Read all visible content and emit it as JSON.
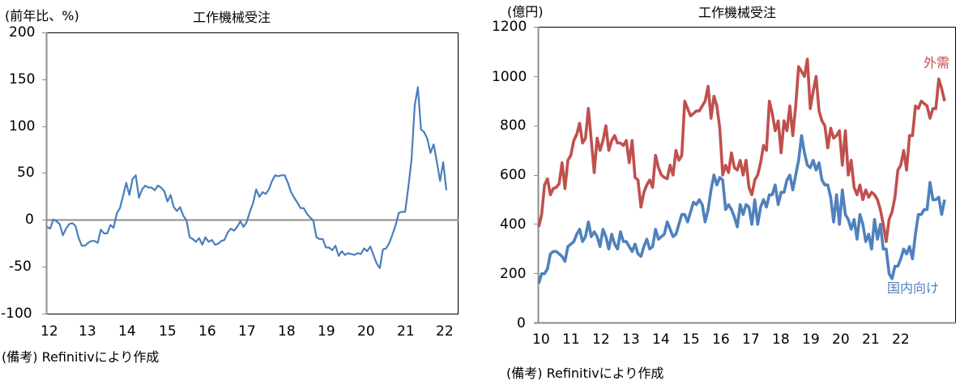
{
  "chart_data": [
    {
      "type": "line",
      "title": "工作機械受注",
      "ylabel": "(前年比、%)",
      "xlabel": "",
      "note": "(備考) Refinitivにより作成",
      "ylim": [
        -100,
        200
      ],
      "yticks": [
        "200",
        "150",
        "100",
        "50",
        "0",
        "-50",
        "-100"
      ],
      "xticks": [
        "12",
        "13",
        "14",
        "15",
        "16",
        "17",
        "18",
        "19",
        "20",
        "21",
        "22"
      ],
      "grid": false,
      "zero_line": true,
      "legend": "none",
      "series": [
        {
          "name": "工作機械受注(前年比)",
          "color": "#4a7ebb",
          "x_start": 2012.0,
          "x_step": 0.0833,
          "values": [
            -7,
            -9,
            1,
            -1,
            -4,
            -16,
            -9,
            -4,
            -3,
            -6,
            -19,
            -27,
            -27,
            -24,
            -22,
            -22,
            -24,
            -10,
            -14,
            -14,
            -5,
            -8,
            7,
            13,
            26,
            40,
            27,
            44,
            48,
            24,
            33,
            37,
            35,
            35,
            32,
            37,
            35,
            31,
            20,
            27,
            14,
            10,
            14,
            5,
            0,
            -18,
            -20,
            -23,
            -19,
            -26,
            -18,
            -23,
            -21,
            -26,
            -25,
            -22,
            -21,
            -13,
            -9,
            -11,
            -7,
            -1,
            -7,
            -2,
            9,
            18,
            33,
            25,
            30,
            28,
            33,
            42,
            48,
            47,
            48,
            48,
            40,
            30,
            24,
            19,
            13,
            13,
            7,
            3,
            0,
            -18,
            -20,
            -20,
            -29,
            -29,
            -32,
            -27,
            -38,
            -33,
            -37,
            -35,
            -36,
            -37,
            -35,
            -36,
            -30,
            -33,
            -28,
            -37,
            -46,
            -51,
            -31,
            -30,
            -24,
            -15,
            -5,
            8,
            9,
            9,
            35,
            65,
            122,
            142,
            97,
            94,
            87,
            72,
            81,
            62,
            42,
            62,
            32
          ]
        }
      ]
    },
    {
      "type": "line",
      "title": "工作機械受注",
      "ylabel": "(億円)",
      "xlabel": "",
      "note": "(備考) Refinitivにより作成",
      "ylim": [
        0,
        1200
      ],
      "yticks": [
        "1200",
        "1000",
        "800",
        "600",
        "400",
        "200",
        "0"
      ],
      "xticks": [
        "10",
        "11",
        "12",
        "13",
        "14",
        "15",
        "16",
        "17",
        "18",
        "19",
        "20",
        "21",
        "22"
      ],
      "grid": false,
      "legend": "inline labels",
      "series": [
        {
          "name": "外需",
          "color": "#c0504d",
          "x_start": 2010.0,
          "x_step": 0.0833,
          "values": [
            390,
            440,
            560,
            585,
            520,
            545,
            550,
            565,
            650,
            545,
            660,
            680,
            740,
            765,
            810,
            730,
            750,
            870,
            740,
            610,
            750,
            700,
            740,
            800,
            700,
            740,
            760,
            730,
            730,
            720,
            740,
            650,
            740,
            590,
            580,
            470,
            530,
            560,
            580,
            550,
            680,
            630,
            600,
            590,
            585,
            640,
            600,
            700,
            660,
            680,
            900,
            870,
            840,
            850,
            860,
            860,
            880,
            900,
            960,
            830,
            920,
            880,
            790,
            600,
            640,
            610,
            690,
            630,
            620,
            660,
            600,
            660,
            550,
            520,
            580,
            600,
            650,
            720,
            700,
            900,
            850,
            780,
            820,
            690,
            820,
            780,
            880,
            760,
            880,
            1040,
            1020,
            1000,
            1070,
            870,
            940,
            1000,
            860,
            820,
            800,
            710,
            790,
            750,
            760,
            780,
            640,
            780,
            600,
            660,
            550,
            520,
            560,
            500,
            540,
            510,
            530,
            520,
            500,
            460,
            400,
            330,
            420,
            450,
            510,
            620,
            640,
            700,
            620,
            760,
            760,
            880,
            870,
            900,
            890,
            880,
            830,
            870,
            870,
            990,
            950,
            900
          ]
        },
        {
          "name": "国内向け",
          "color": "#4f81bd",
          "x_start": 2010.0,
          "x_step": 0.0833,
          "values": [
            160,
            200,
            200,
            220,
            280,
            290,
            290,
            280,
            270,
            250,
            310,
            320,
            330,
            360,
            380,
            330,
            350,
            410,
            350,
            370,
            350,
            310,
            380,
            350,
            300,
            360,
            320,
            300,
            370,
            330,
            330,
            310,
            290,
            320,
            280,
            270,
            310,
            340,
            300,
            310,
            380,
            340,
            350,
            360,
            410,
            380,
            350,
            360,
            400,
            440,
            440,
            410,
            450,
            490,
            480,
            500,
            480,
            410,
            460,
            540,
            600,
            560,
            590,
            580,
            460,
            480,
            460,
            430,
            390,
            480,
            440,
            480,
            470,
            400,
            500,
            400,
            470,
            500,
            470,
            520,
            520,
            560,
            480,
            530,
            530,
            580,
            600,
            540,
            600,
            660,
            760,
            690,
            640,
            630,
            660,
            620,
            650,
            580,
            560,
            560,
            510,
            410,
            520,
            400,
            540,
            440,
            420,
            380,
            420,
            340,
            440,
            400,
            330,
            360,
            300,
            420,
            340,
            400,
            300,
            300,
            200,
            180,
            230,
            230,
            260,
            300,
            280,
            310,
            260,
            360,
            440,
            440,
            460,
            460,
            570,
            500,
            500,
            510,
            440,
            500
          ]
        }
      ]
    }
  ],
  "left": {
    "ylabel": "(前年比、%)",
    "title": "工作機械受注",
    "note": "(備考) Refinitivにより作成",
    "yticks": [
      "200",
      "150",
      "100",
      "50",
      "0",
      "-50",
      "-100"
    ],
    "xticks": [
      "12",
      "13",
      "14",
      "15",
      "16",
      "17",
      "18",
      "19",
      "20",
      "21",
      "22"
    ],
    "line_color": "#4a7ebb"
  },
  "right": {
    "ylabel": "(億円)",
    "title": "工作機械受注",
    "note": "(備考) Refinitivにより作成",
    "yticks": [
      "1200",
      "1000",
      "800",
      "600",
      "400",
      "200",
      "0"
    ],
    "xticks": [
      "10",
      "11",
      "12",
      "13",
      "14",
      "15",
      "16",
      "17",
      "18",
      "19",
      "20",
      "21",
      "22"
    ],
    "label_foreign": "外需",
    "label_domestic": "国内向け",
    "color_foreign": "#c0504d",
    "color_domestic": "#4f81bd"
  }
}
